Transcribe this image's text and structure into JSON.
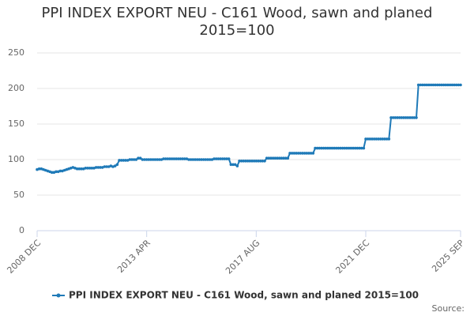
{
  "chart_data": {
    "type": "line",
    "title": "PPI INDEX EXPORT NEU - C161 Wood, sawn and planed 2015=100",
    "credit": "Source:",
    "categories": [
      "2008 DEC",
      null,
      null,
      null,
      null,
      null,
      null,
      null,
      null,
      null,
      null,
      null,
      null,
      null,
      null,
      null,
      null,
      null,
      null,
      null,
      null,
      null,
      null,
      null,
      null,
      null,
      null,
      null,
      null,
      null,
      null,
      null,
      null,
      null,
      null,
      null,
      null,
      null,
      null,
      null,
      null,
      null,
      null,
      null,
      null,
      null,
      null,
      null,
      null,
      null,
      null,
      null,
      "2013 APR",
      null,
      null,
      null,
      null,
      null,
      null,
      null,
      null,
      null,
      null,
      null,
      null,
      null,
      null,
      null,
      null,
      null,
      null,
      null,
      null,
      null,
      null,
      null,
      null,
      null,
      null,
      null,
      null,
      null,
      null,
      null,
      null,
      null,
      null,
      null,
      null,
      null,
      null,
      null,
      null,
      null,
      null,
      null,
      null,
      null,
      null,
      null,
      null,
      null,
      null,
      null,
      "2017 AUG",
      null,
      null,
      null,
      null,
      null,
      null,
      null,
      null,
      null,
      null,
      null,
      null,
      null,
      null,
      null,
      null,
      null,
      null,
      null,
      null,
      null,
      null,
      null,
      null,
      null,
      null,
      null,
      null,
      null,
      null,
      null,
      null,
      null,
      null,
      null,
      null,
      null,
      null,
      null,
      null,
      null,
      null,
      null,
      null,
      null,
      null,
      null,
      null,
      null,
      null,
      null,
      "2021 DEC",
      null,
      null,
      null,
      null,
      null,
      null,
      null,
      null,
      null,
      null,
      null,
      null,
      null,
      null,
      null,
      null,
      null,
      null,
      null,
      null,
      null,
      null,
      null,
      null,
      null,
      null,
      null,
      null,
      null,
      null,
      null,
      null,
      null,
      null,
      null,
      null,
      null,
      null,
      null,
      null,
      null,
      null,
      null,
      null,
      "2025 SEP"
    ],
    "series": [
      {
        "name": "PPI INDEX EXPORT NEU - C161 Wood, sawn and planed 2015=100",
        "color": "#1f7ab8",
        "values": [
          86,
          87,
          87,
          86,
          85,
          84,
          83,
          82,
          82,
          83,
          83,
          84,
          84,
          85,
          86,
          87,
          88,
          89,
          88,
          87,
          87,
          87,
          87,
          88,
          88,
          88,
          88,
          88,
          89,
          89,
          89,
          89,
          90,
          90,
          90,
          91,
          90,
          91,
          93,
          99,
          99,
          99,
          99,
          99,
          100,
          100,
          100,
          100,
          102,
          102,
          100,
          100,
          100,
          100,
          100,
          100,
          100,
          100,
          100,
          100,
          101,
          101,
          101,
          101,
          101,
          101,
          101,
          101,
          101,
          101,
          101,
          101,
          100,
          100,
          100,
          100,
          100,
          100,
          100,
          100,
          100,
          100,
          100,
          100,
          101,
          101,
          101,
          101,
          101,
          101,
          101,
          101,
          93,
          93,
          93,
          91,
          98,
          98,
          98,
          98,
          98,
          98,
          98,
          98,
          98,
          98,
          98,
          98,
          98,
          102,
          102,
          102,
          102,
          102,
          102,
          102,
          102,
          102,
          102,
          102,
          109,
          109,
          109,
          109,
          109,
          109,
          109,
          109,
          109,
          109,
          109,
          109,
          116,
          116,
          116,
          116,
          116,
          116,
          116,
          116,
          116,
          116,
          116,
          116,
          116,
          116,
          116,
          116,
          116,
          116,
          116,
          116,
          116,
          116,
          116,
          116,
          129,
          129,
          129,
          129,
          129,
          129,
          129,
          129,
          129,
          129,
          129,
          129,
          159,
          159,
          159,
          159,
          159,
          159,
          159,
          159,
          159,
          159,
          159,
          159,
          159,
          205,
          205,
          205,
          205,
          205,
          205,
          205,
          205,
          205,
          205,
          205,
          205,
          205,
          205,
          205,
          205,
          205,
          205,
          205,
          205,
          205
        ]
      }
    ],
    "ylim": [
      0,
      250
    ],
    "yticks": [
      0,
      50,
      100,
      150,
      200,
      250
    ],
    "grid": true,
    "legend": "bottom"
  }
}
